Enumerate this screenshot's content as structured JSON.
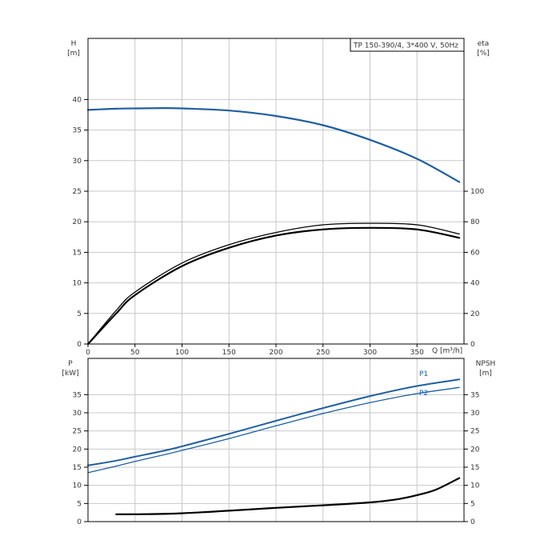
{
  "chart_data": [
    {
      "type": "line",
      "title": "TP 150-390/4, 3*400 V, 50Hz",
      "xlabel": "Q [m³/h]",
      "xlim": [
        0,
        400
      ],
      "x_ticks": [
        "0",
        "50",
        "100",
        "150",
        "200",
        "250",
        "300",
        "350"
      ],
      "y_left": {
        "label_top": "H",
        "label_unit": "[m]",
        "lim": [
          0,
          50
        ],
        "ticks": [
          "0",
          "5",
          "10",
          "15",
          "20",
          "25",
          "30",
          "35",
          "40"
        ]
      },
      "y_right": {
        "label_top": "eta",
        "label_unit": "[%]",
        "lim": [
          0,
          200
        ],
        "ticks": [
          "0",
          "20",
          "40",
          "60",
          "80",
          "100"
        ]
      },
      "grid": true,
      "series": [
        {
          "axis": "left",
          "color": "#1f5fa0",
          "x": [
            0,
            30,
            50,
            80,
            100,
            150,
            200,
            250,
            300,
            350,
            395
          ],
          "values": [
            38.3,
            38.5,
            38.55,
            38.6,
            38.55,
            38.2,
            37.3,
            35.8,
            33.4,
            30.3,
            26.5
          ]
        },
        {
          "axis": "right",
          "color": "#000000",
          "x": [
            0,
            30,
            50,
            100,
            150,
            200,
            250,
            300,
            350,
            395
          ],
          "values": [
            0,
            22,
            34,
            53,
            65,
            73,
            78,
            79,
            78,
            72
          ]
        },
        {
          "axis": "right",
          "color": "#000000",
          "x": [
            0,
            30,
            50,
            100,
            150,
            200,
            250,
            300,
            350,
            395
          ],
          "values": [
            0,
            20,
            32,
            51,
            63,
            71,
            75,
            76,
            75,
            69.5
          ]
        }
      ]
    },
    {
      "type": "line",
      "xlim": [
        0,
        400
      ],
      "y_left": {
        "label_top": "P",
        "label_unit": "[kW]",
        "lim": [
          0,
          45
        ],
        "ticks": [
          "0",
          "5",
          "10",
          "15",
          "20",
          "25",
          "30",
          "35"
        ]
      },
      "y_right": {
        "label_top": "NPSH",
        "label_unit": "[m]",
        "lim": [
          0,
          45
        ],
        "ticks": [
          "0",
          "5",
          "10",
          "15",
          "20",
          "25",
          "30",
          "35"
        ]
      },
      "grid": true,
      "series": [
        {
          "name": "P1",
          "axis": "left",
          "color": "#1f5fa0",
          "x": [
            0,
            30,
            50,
            90,
            150,
            200,
            250,
            300,
            350,
            395
          ],
          "values": [
            15.5,
            16.8,
            17.9,
            20.1,
            24.2,
            27.8,
            31.3,
            34.6,
            37.4,
            39.2
          ]
        },
        {
          "name": "P2",
          "axis": "left",
          "color": "#1f5fa0",
          "x": [
            0,
            30,
            50,
            90,
            150,
            200,
            250,
            300,
            350,
            395
          ],
          "values": [
            13.5,
            15.3,
            16.6,
            19.0,
            22.9,
            26.4,
            29.8,
            32.8,
            35.3,
            37.0
          ]
        },
        {
          "axis": "right",
          "color": "#000000",
          "x": [
            30,
            60,
            100,
            150,
            200,
            250,
            300,
            330,
            350,
            370,
            395
          ],
          "values": [
            2.0,
            2.05,
            2.3,
            3.0,
            3.8,
            4.5,
            5.3,
            6.2,
            7.3,
            8.8,
            12.0
          ]
        }
      ]
    }
  ]
}
